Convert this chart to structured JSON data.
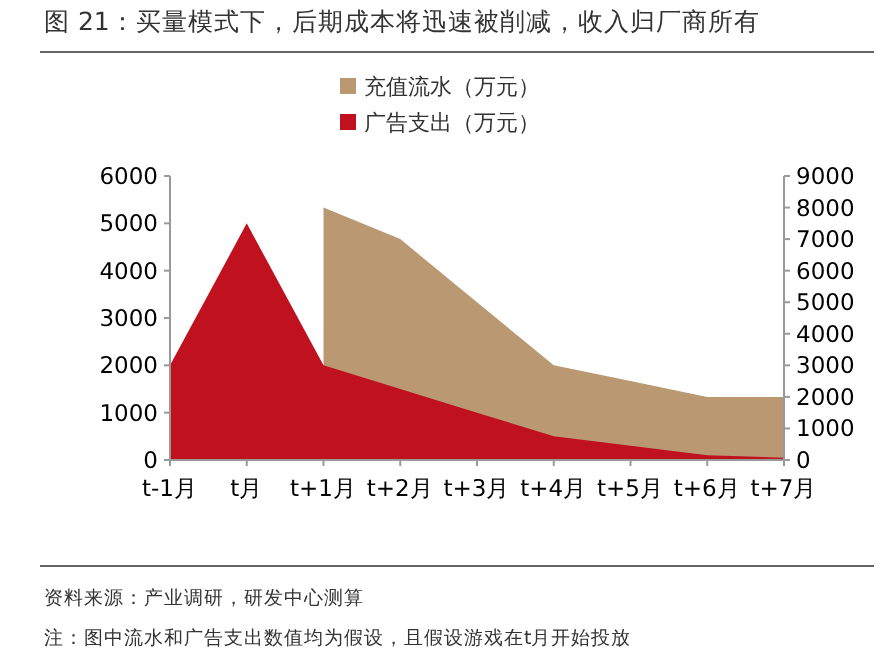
{
  "chart_data": {
    "type": "area",
    "title": "图 21：买量模式下，后期成本将迅速被削减，收入归厂商所有",
    "categories": [
      "t-1月",
      "t月",
      "t+1月",
      "t+2月",
      "t+3月",
      "t+4月",
      "t+5月",
      "t+6月",
      "t+7月"
    ],
    "series": [
      {
        "name": "充值流水（万元）",
        "color": "#b99872",
        "axis": "y2",
        "values": [
          null,
          null,
          8000,
          7000,
          5000,
          3000,
          2500,
          2000,
          2000
        ]
      },
      {
        "name": "广告支出（万元）",
        "color": "#c0111f",
        "values": [
          2000,
          5000,
          2000,
          1500,
          1000,
          500,
          300,
          100,
          50
        ]
      }
    ],
    "ylim": [
      0,
      6000
    ],
    "yticks": [
      0,
      1000,
      2000,
      3000,
      4000,
      5000,
      6000
    ],
    "y2lim": [
      0,
      9000
    ],
    "y2ticks": [
      0,
      1000,
      2000,
      3000,
      4000,
      5000,
      6000,
      7000,
      8000,
      9000
    ],
    "legend": "top",
    "annotations": [
      "资料来源：产业调研，研发中心测算",
      "注：图中流水和广告支出数值均为假设，且假设游戏在t月开始投放"
    ]
  }
}
